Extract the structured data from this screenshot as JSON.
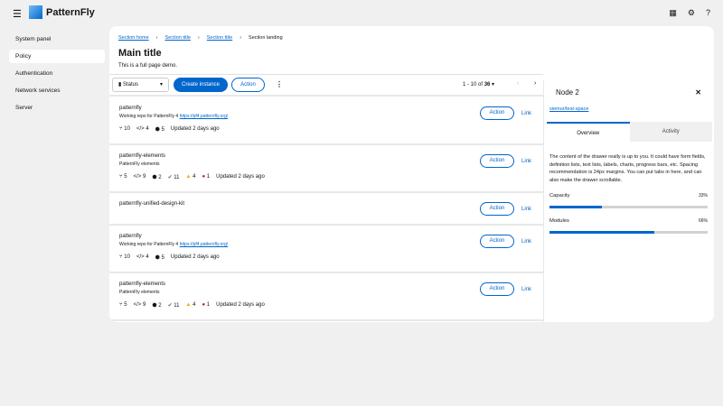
{
  "header": {
    "brand": "PatternFly",
    "icons": [
      "menu-icon",
      "grid-icon",
      "gear-icon",
      "help-icon"
    ]
  },
  "nav": {
    "items": [
      "System panel",
      "Policy",
      "Authentication",
      "Network services",
      "Server"
    ],
    "active": "Policy"
  },
  "breadcrumb": [
    "Section home",
    "Section title",
    "Section title",
    "Section landing"
  ],
  "page": {
    "title": "Main title",
    "subtitle": "This is a full page demo."
  },
  "toolbar": {
    "status": "Status",
    "create": "Create instance",
    "action": "Action",
    "pagination": "1 - 10 of",
    "total": "36"
  },
  "rows": [
    {
      "name": "patternfly",
      "desc": "Working repo for PatternFly 4",
      "url": "https://pf4.patternfly.org/",
      "branches": "10",
      "code": "4",
      "cubes": "5",
      "ok": null,
      "warn": null,
      "err": null,
      "updated": "Updated 2 days ago"
    },
    {
      "name": "patternfly-elements",
      "desc": "PatternFly elements",
      "url": "",
      "branches": "5",
      "code": "9",
      "cubes": "2",
      "ok": "11",
      "warn": "4",
      "err": "1",
      "updated": "Updated 2 days ago"
    },
    {
      "name": "patternfly-unified-design-kit",
      "desc": "",
      "url": "",
      "branches": null
    },
    {
      "name": "patternfly",
      "desc": "Working repo for PatternFly 4",
      "url": "https://pf4.patternfly.org/",
      "branches": "10",
      "code": "4",
      "cubes": "5",
      "ok": null,
      "warn": null,
      "err": null,
      "updated": "Updated 2 days ago"
    },
    {
      "name": "patternfly-elements",
      "desc": "PatternFly elements",
      "url": "",
      "branches": "5",
      "code": "9",
      "cubes": "2",
      "ok": "11",
      "warn": "4",
      "err": "1",
      "updated": "Updated 2 days ago"
    }
  ],
  "row_action": "Action",
  "row_link": "Link",
  "drawer": {
    "title": "Node 2",
    "link": "siemur/test-space",
    "tabs": [
      "Overview",
      "Activity"
    ],
    "body": "The content of the drawer really is up to you. It could have form fields, definition lists, text lists, labels, charts, progress bars, etc. Spacing recommendation is 24px margins. You can put tabs in here, and can also make the drawer scrollable.",
    "progress": [
      {
        "label": "Capacity",
        "value": 33,
        "text": "33%"
      },
      {
        "label": "Modules",
        "value": 66,
        "text": "66%"
      }
    ]
  },
  "colors": {
    "accent": "#0066cc",
    "success": "#3e8635",
    "warning": "#f0ab00",
    "danger": "#c9190b"
  }
}
